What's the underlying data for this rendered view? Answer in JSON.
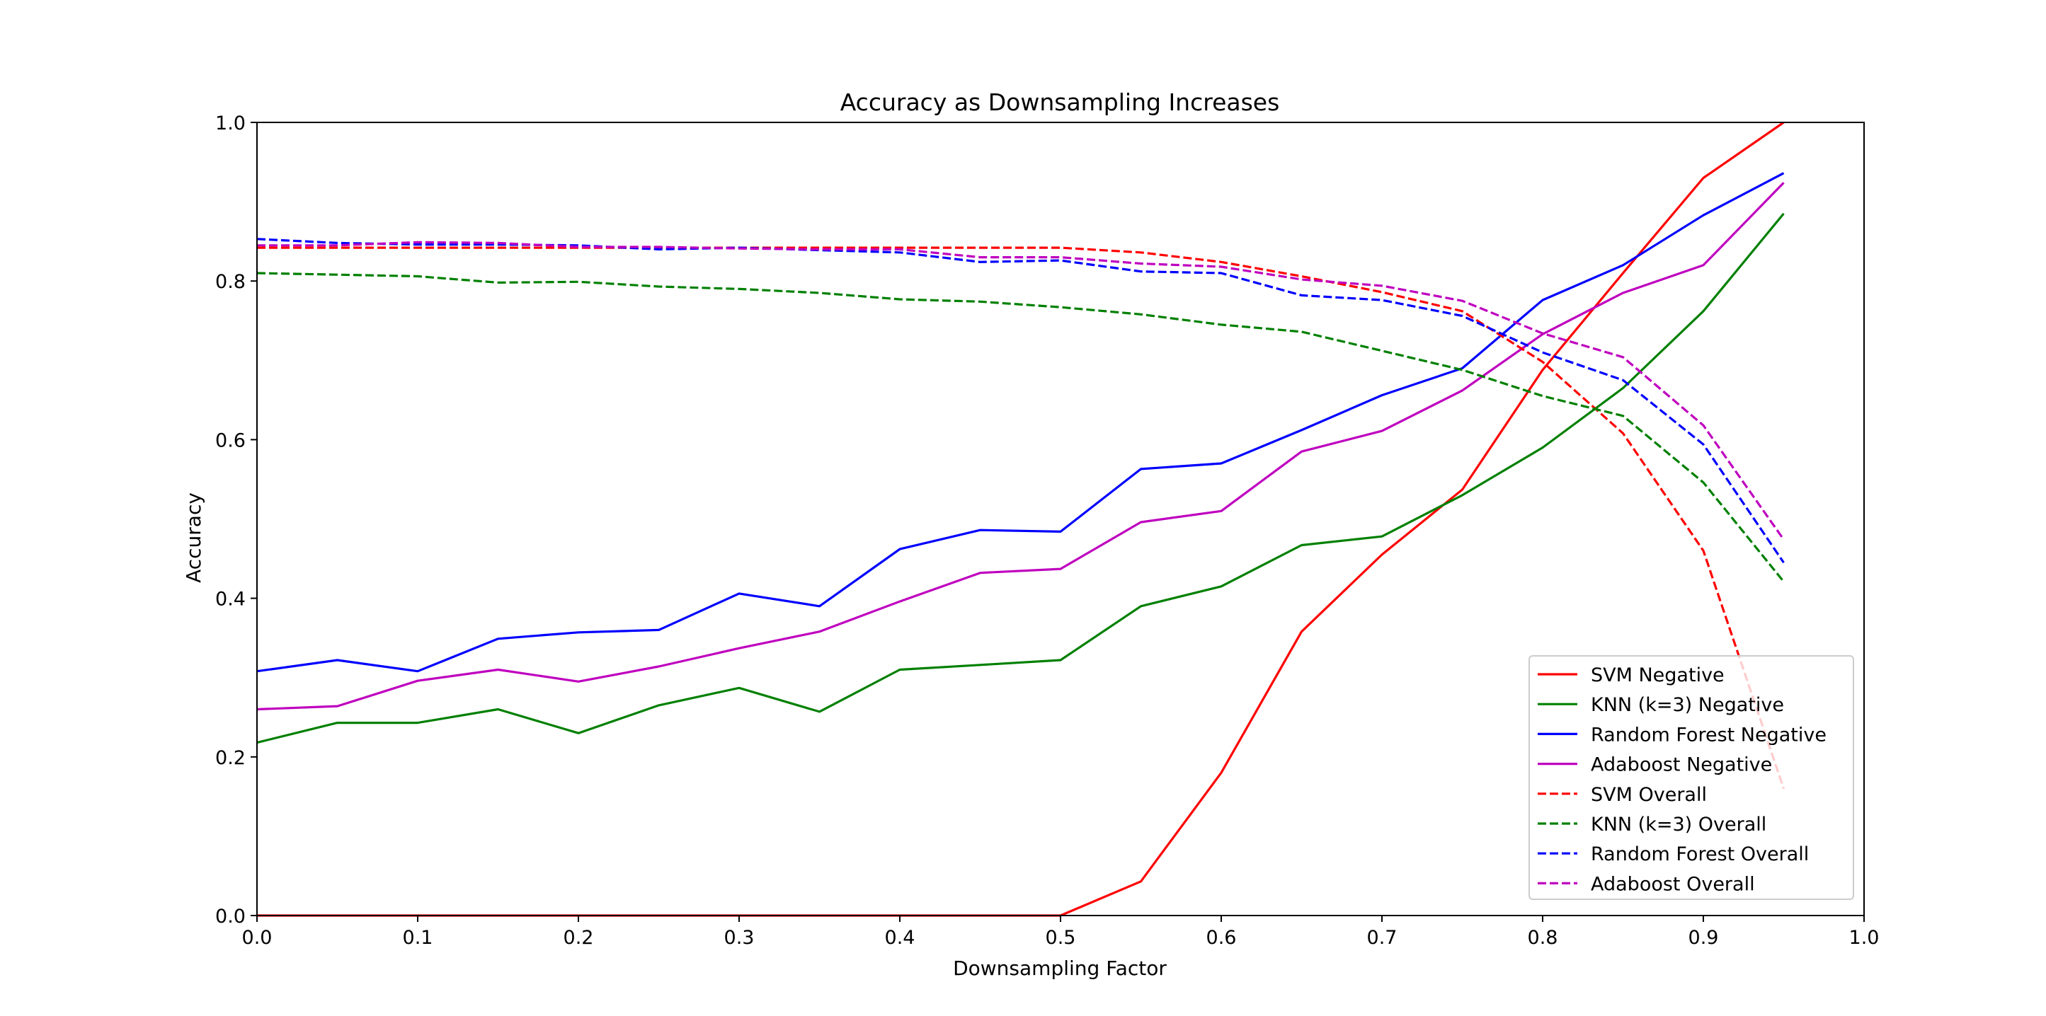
{
  "chart_data": {
    "type": "line",
    "title": "Accuracy as Downsampling Increases",
    "xlabel": "Downsampling Factor",
    "ylabel": "Accuracy",
    "xlim": [
      0.0,
      1.0
    ],
    "ylim": [
      0.0,
      1.0
    ],
    "xticks": [
      "0.0",
      "0.1",
      "0.2",
      "0.3",
      "0.4",
      "0.5",
      "0.6",
      "0.7",
      "0.8",
      "0.9",
      "1.0"
    ],
    "yticks": [
      "0.0",
      "0.2",
      "0.4",
      "0.6",
      "0.8",
      "1.0"
    ],
    "grid": false,
    "legend_position": "lower-right",
    "x": [
      0.0,
      0.05,
      0.1,
      0.15,
      0.2,
      0.25,
      0.3,
      0.35,
      0.4,
      0.45,
      0.5,
      0.55,
      0.6,
      0.65,
      0.7,
      0.75,
      0.8,
      0.85,
      0.9,
      0.95
    ],
    "series": [
      {
        "name": "SVM Negative",
        "color": "#ff0000",
        "style": "solid",
        "values": [
          0.0,
          0.0,
          0.0,
          0.0,
          0.0,
          0.0,
          0.0,
          0.0,
          0.0,
          0.0,
          0.0,
          0.043,
          0.18,
          0.358,
          0.455,
          0.537,
          0.688,
          0.81,
          0.93,
          1.0
        ]
      },
      {
        "name": "KNN (k=3) Negative",
        "color": "#008000",
        "style": "solid",
        "values": [
          0.218,
          0.243,
          0.243,
          0.26,
          0.23,
          0.265,
          0.287,
          0.257,
          0.31,
          0.316,
          0.322,
          0.39,
          0.415,
          0.467,
          0.478,
          0.53,
          0.59,
          0.665,
          0.762,
          0.885
        ]
      },
      {
        "name": "Random Forest Negative",
        "color": "#0000ff",
        "style": "solid",
        "values": [
          0.308,
          0.322,
          0.308,
          0.349,
          0.357,
          0.36,
          0.406,
          0.39,
          0.462,
          0.486,
          0.484,
          0.563,
          0.57,
          0.612,
          0.656,
          0.69,
          0.776,
          0.82,
          0.883,
          0.936
        ]
      },
      {
        "name": "Adaboost Negative",
        "color": "#bf00bf",
        "style": "solid",
        "values": [
          0.26,
          0.264,
          0.296,
          0.31,
          0.295,
          0.314,
          0.337,
          0.358,
          0.396,
          0.432,
          0.437,
          0.496,
          0.51,
          0.585,
          0.611,
          0.662,
          0.733,
          0.785,
          0.82,
          0.924
        ]
      },
      {
        "name": "SVM Overall",
        "color": "#ff0000",
        "style": "dashed",
        "values": [
          0.842,
          0.842,
          0.842,
          0.842,
          0.842,
          0.842,
          0.842,
          0.842,
          0.842,
          0.842,
          0.842,
          0.836,
          0.824,
          0.806,
          0.786,
          0.762,
          0.698,
          0.608,
          0.46,
          0.16
        ]
      },
      {
        "name": "KNN (k=3) Overall",
        "color": "#008000",
        "style": "dashed",
        "values": [
          0.81,
          0.808,
          0.806,
          0.798,
          0.799,
          0.793,
          0.79,
          0.785,
          0.777,
          0.774,
          0.767,
          0.758,
          0.745,
          0.736,
          0.712,
          0.688,
          0.655,
          0.63,
          0.546,
          0.421
        ]
      },
      {
        "name": "Random Forest Overall",
        "color": "#0000ff",
        "style": "dashed",
        "values": [
          0.853,
          0.848,
          0.846,
          0.846,
          0.845,
          0.84,
          0.842,
          0.839,
          0.836,
          0.824,
          0.826,
          0.812,
          0.81,
          0.782,
          0.776,
          0.756,
          0.71,
          0.675,
          0.594,
          0.445
        ]
      },
      {
        "name": "Adaboost Overall",
        "color": "#bf00bf",
        "style": "dashed",
        "values": [
          0.845,
          0.845,
          0.849,
          0.848,
          0.843,
          0.843,
          0.841,
          0.84,
          0.84,
          0.83,
          0.83,
          0.822,
          0.818,
          0.802,
          0.794,
          0.775,
          0.734,
          0.704,
          0.618,
          0.474
        ]
      }
    ]
  }
}
